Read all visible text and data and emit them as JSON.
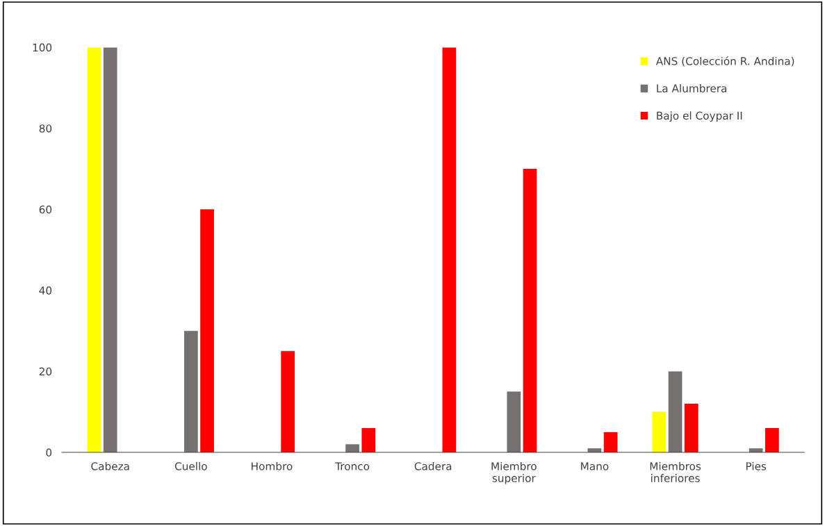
{
  "chart_data": {
    "type": "bar",
    "categories": [
      "Cabeza",
      "Cuello",
      "Hombro",
      "Tronco",
      "Cadera",
      "Miembro\nsuperior",
      "Mano",
      "Miembros\ninferiores",
      "Pies"
    ],
    "series": [
      {
        "name": "ANS (Colección R. Andina)",
        "color": "#ffff00",
        "values": [
          100,
          0,
          0,
          0,
          0,
          0,
          0,
          10,
          0
        ]
      },
      {
        "name": "La Alumbrera",
        "color": "#767171",
        "values": [
          100,
          30,
          0,
          2,
          0,
          15,
          1,
          20,
          1
        ]
      },
      {
        "name": "Bajo el Coypar II",
        "color": "#ff0000",
        "values": [
          0,
          60,
          25,
          6,
          100,
          70,
          5,
          12,
          6
        ]
      }
    ],
    "ylim": [
      0,
      100
    ],
    "yticks": [
      0,
      20,
      40,
      60,
      80,
      100
    ],
    "grid": false,
    "legend": "top right"
  }
}
